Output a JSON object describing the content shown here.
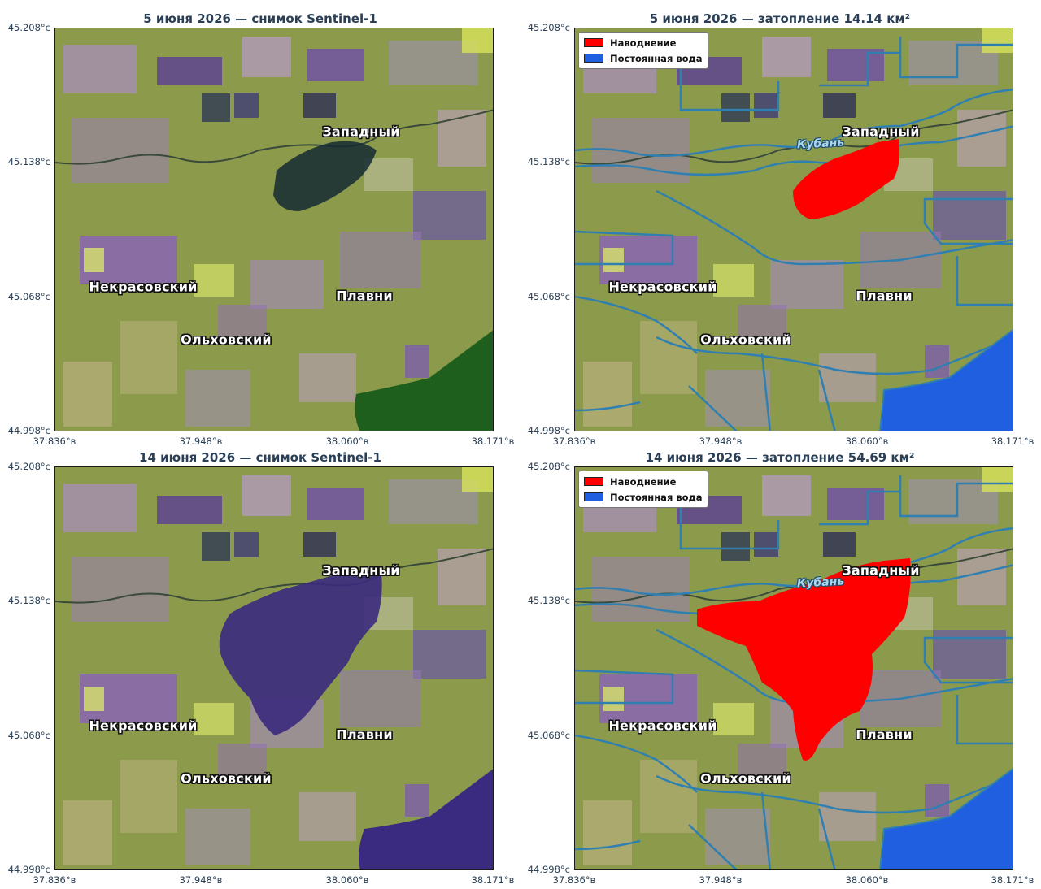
{
  "axes": {
    "y_ticks": [
      "45.208°с",
      "45.138°с",
      "45.068°с",
      "44.998°с"
    ],
    "x_ticks": [
      "37.836°в",
      "37.948°в",
      "38.060°в",
      "38.171°в"
    ]
  },
  "places": {
    "zapadny": "Западный",
    "nekrasovsky": "Некрасовский",
    "plavni": "Плавни",
    "olkhovsky": "Ольховский",
    "river": "Кубань"
  },
  "legend": {
    "flood": "Наводнение",
    "permanent_water": "Постоянная вода"
  },
  "colors": {
    "flood": "#ff0000",
    "permanent_water": "#1f5fe0",
    "boundary": "#2f7fb0"
  },
  "panels": [
    {
      "title": "5 июня 2026 — снимок Sentinel-1",
      "type": "sar",
      "date": "5 июня 2026"
    },
    {
      "title": "5 июня 2026 — затопление 14.14 км²",
      "type": "flood",
      "flood_area_km2": 14.14
    },
    {
      "title": "14 июня 2026 — снимок Sentinel-1",
      "type": "sar",
      "date": "14 июня 2026"
    },
    {
      "title": "14 июня 2026 — затопление 54.69 км²",
      "type": "flood",
      "flood_area_km2": 54.69
    }
  ]
}
